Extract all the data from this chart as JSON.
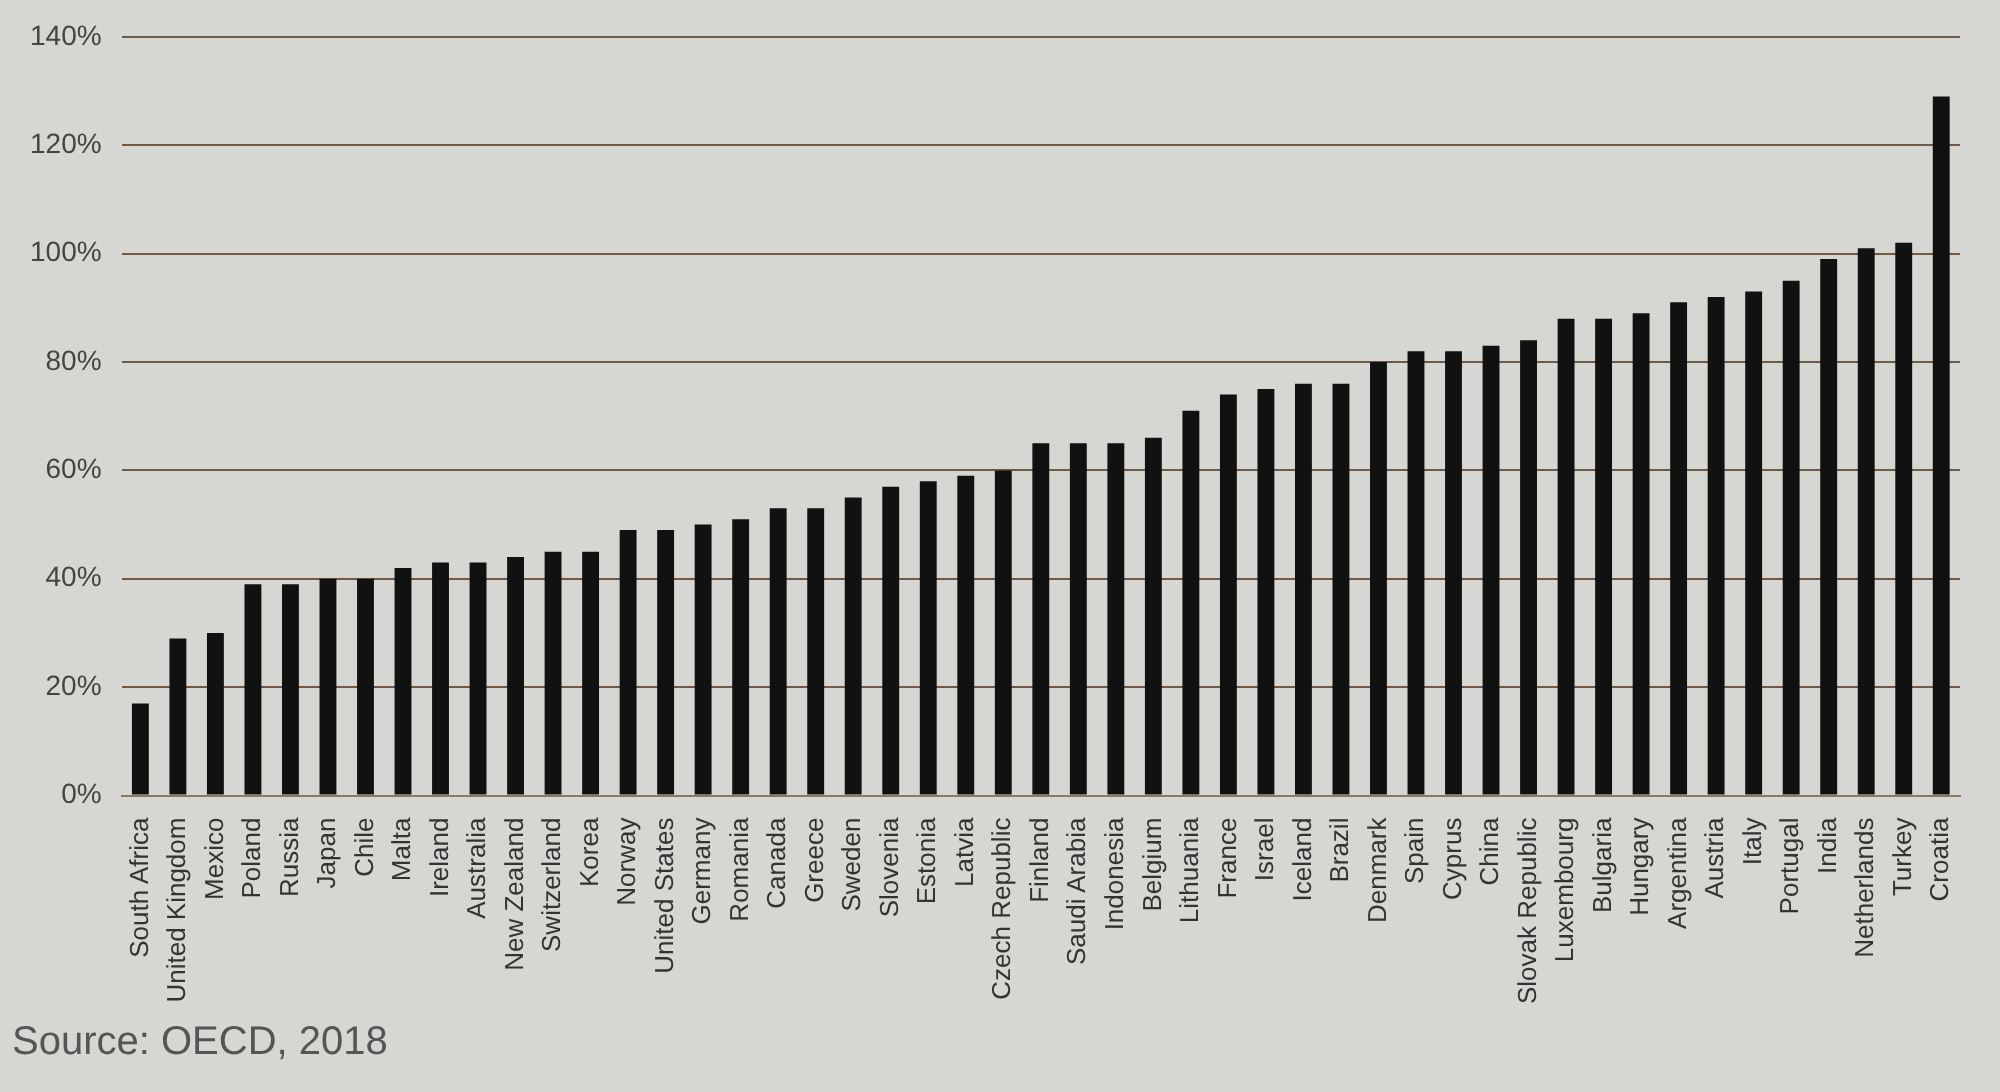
{
  "chart_data": {
    "type": "bar",
    "categories": [
      "South Africa",
      "United Kingdom",
      "Mexico",
      "Poland",
      "Russia",
      "Japan",
      "Chile",
      "Malta",
      "Ireland",
      "Australia",
      "New Zealand",
      "Switzerland",
      "Korea",
      "Norway",
      "United States",
      "Germany",
      "Romania",
      "Canada",
      "Greece",
      "Sweden",
      "Slovenia",
      "Estonia",
      "Latvia",
      "Czech Republic",
      "Finland",
      "Saudi Arabia",
      "Indonesia",
      "Belgium",
      "Lithuania",
      "France",
      "Israel",
      "Iceland",
      "Brazil",
      "Denmark",
      "Spain",
      "Cyprus",
      "China",
      "Slovak Republic",
      "Luxembourg",
      "Bulgaria",
      "Hungary",
      "Argentina",
      "Austria",
      "Italy",
      "Portugal",
      "India",
      "Netherlands",
      "Turkey",
      "Croatia"
    ],
    "values": [
      17,
      29,
      30,
      39,
      39,
      40,
      40,
      42,
      43,
      43,
      44,
      45,
      45,
      49,
      49,
      50,
      51,
      53,
      53,
      55,
      57,
      58,
      59,
      60,
      65,
      65,
      65,
      66,
      71,
      74,
      75,
      76,
      76,
      80,
      82,
      82,
      83,
      84,
      88,
      88,
      89,
      91,
      92,
      93,
      95,
      99,
      101,
      102,
      129
    ],
    "color": "#111111",
    "ylim": [
      0,
      140
    ],
    "yticks": [
      {
        "value": 0,
        "label": "0%"
      },
      {
        "value": 20,
        "label": "20%"
      },
      {
        "value": 40,
        "label": "40%"
      },
      {
        "value": 60,
        "label": "60%"
      },
      {
        "value": 80,
        "label": "80%"
      },
      {
        "value": 100,
        "label": "100%"
      },
      {
        "value": 120,
        "label": "120%"
      },
      {
        "value": 140,
        "label": "140%"
      }
    ],
    "grid": "y",
    "legend": false,
    "annotations": [
      "Source: OECD, 2018"
    ]
  }
}
